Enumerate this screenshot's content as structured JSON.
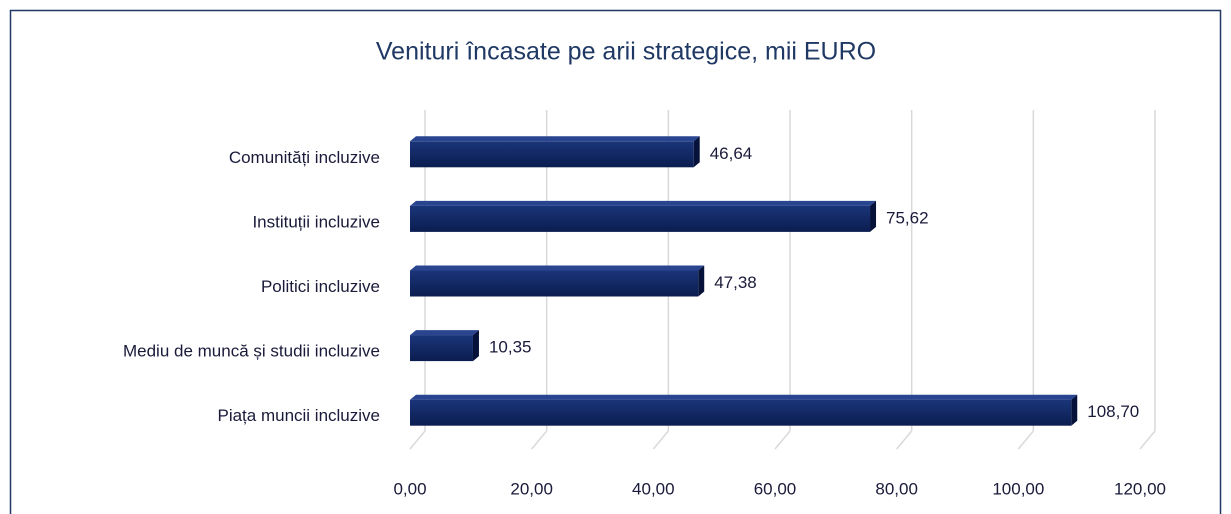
{
  "chart_data": {
    "type": "bar",
    "orientation": "horizontal",
    "title": "Venituri încasate pe arii strategice, mii EURO",
    "categories": [
      "Comunități incluzive",
      "Instituții incluzive",
      "Politici incluzive",
      "Mediu de muncă și studii incluzive",
      "Piața muncii incluzive"
    ],
    "values": [
      46.64,
      75.62,
      47.38,
      10.35,
      108.7
    ],
    "value_labels": [
      "46,64",
      "75,62",
      "47,38",
      "10,35",
      "108,70"
    ],
    "color": "#0e2460",
    "xlim": [
      0,
      120
    ],
    "xticks": [
      {
        "value": 0,
        "label": "0,00"
      },
      {
        "value": 20,
        "label": "20,00"
      },
      {
        "value": 40,
        "label": "40,00"
      },
      {
        "value": 60,
        "label": "60,00"
      },
      {
        "value": 80,
        "label": "80,00"
      },
      {
        "value": 100,
        "label": "100,00"
      },
      {
        "value": 120,
        "label": "120,00"
      }
    ],
    "grid": true
  }
}
